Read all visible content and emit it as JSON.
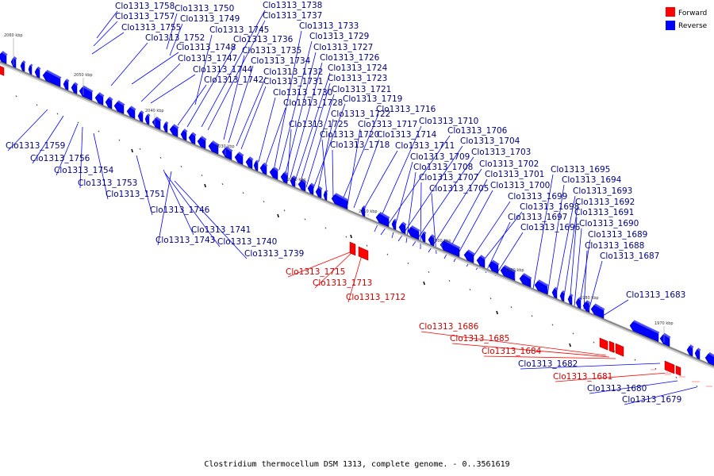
{
  "caption": "Clostridium thermocellum DSM 1313, complete genome. - 0..3561619",
  "legend": [
    {
      "label": "Forward",
      "color": "#ff0000"
    },
    {
      "label": "Reverse",
      "color": "#0000ff"
    }
  ],
  "colors": {
    "forward": "#ff0000",
    "reverse": "#0000ff",
    "backbone": "#888888"
  },
  "ticks": [
    "2060 kbp",
    "2050 kbp",
    "2040 kbp",
    "2030 kbp",
    "2020 kbp",
    "2010 kbp",
    "2000 kbp",
    "1990 kbp",
    "1980 kbp",
    "1970 kbp"
  ],
  "genes": [
    {
      "name": "Clo1313_1758",
      "strand": "reverse"
    },
    {
      "name": "Clo1313_1757",
      "strand": "reverse"
    },
    {
      "name": "Clo1313_1755",
      "strand": "reverse"
    },
    {
      "name": "Clo1313_1750",
      "strand": "reverse"
    },
    {
      "name": "Clo1313_1749",
      "strand": "reverse"
    },
    {
      "name": "Clo1313_1752",
      "strand": "reverse"
    },
    {
      "name": "Clo1313_1745",
      "strand": "reverse"
    },
    {
      "name": "Clo1313_1748",
      "strand": "reverse"
    },
    {
      "name": "Clo1313_1747",
      "strand": "reverse"
    },
    {
      "name": "Clo1313_1744",
      "strand": "reverse"
    },
    {
      "name": "Clo1313_1742",
      "strand": "reverse"
    },
    {
      "name": "Clo1313_1738",
      "strand": "reverse"
    },
    {
      "name": "Clo1313_1737",
      "strand": "reverse"
    },
    {
      "name": "Clo1313_1736",
      "strand": "reverse"
    },
    {
      "name": "Clo1313_1735",
      "strand": "reverse"
    },
    {
      "name": "Clo1313_1734",
      "strand": "reverse"
    },
    {
      "name": "Clo1313_1732",
      "strand": "reverse"
    },
    {
      "name": "Clo1313_1731",
      "strand": "reverse"
    },
    {
      "name": "Clo1313_1730",
      "strand": "reverse"
    },
    {
      "name": "Clo1313_1728",
      "strand": "reverse"
    },
    {
      "name": "Clo1313_1733",
      "strand": "reverse"
    },
    {
      "name": "Clo1313_1729",
      "strand": "reverse"
    },
    {
      "name": "Clo1313_1727",
      "strand": "reverse"
    },
    {
      "name": "Clo1313_1726",
      "strand": "reverse"
    },
    {
      "name": "Clo1313_1724",
      "strand": "reverse"
    },
    {
      "name": "Clo1313_1723",
      "strand": "reverse"
    },
    {
      "name": "Clo1313_1721",
      "strand": "reverse"
    },
    {
      "name": "Clo1313_1719",
      "strand": "reverse"
    },
    {
      "name": "Clo1313_1722",
      "strand": "reverse"
    },
    {
      "name": "Clo1313_1725",
      "strand": "reverse"
    },
    {
      "name": "Clo1313_1720",
      "strand": "reverse"
    },
    {
      "name": "Clo1313_1718",
      "strand": "reverse"
    },
    {
      "name": "Clo1313_1716",
      "strand": "reverse"
    },
    {
      "name": "Clo1313_1717",
      "strand": "reverse"
    },
    {
      "name": "Clo1313_1714",
      "strand": "reverse"
    },
    {
      "name": "Clo1313_1711",
      "strand": "reverse"
    },
    {
      "name": "Clo1313_1710",
      "strand": "reverse"
    },
    {
      "name": "Clo1313_1706",
      "strand": "reverse"
    },
    {
      "name": "Clo1313_1709",
      "strand": "reverse"
    },
    {
      "name": "Clo1313_1704",
      "strand": "reverse"
    },
    {
      "name": "Clo1313_1708",
      "strand": "reverse"
    },
    {
      "name": "Clo1313_1703",
      "strand": "reverse"
    },
    {
      "name": "Clo1313_1707",
      "strand": "reverse"
    },
    {
      "name": "Clo1313_1702",
      "strand": "reverse"
    },
    {
      "name": "Clo1313_1705",
      "strand": "reverse"
    },
    {
      "name": "Clo1313_1701",
      "strand": "reverse"
    },
    {
      "name": "Clo1313_1700",
      "strand": "reverse"
    },
    {
      "name": "Clo1313_1699",
      "strand": "reverse"
    },
    {
      "name": "Clo1313_1698",
      "strand": "reverse"
    },
    {
      "name": "Clo1313_1697",
      "strand": "reverse"
    },
    {
      "name": "Clo1313_1696",
      "strand": "reverse"
    },
    {
      "name": "Clo1313_1695",
      "strand": "reverse"
    },
    {
      "name": "Clo1313_1694",
      "strand": "reverse"
    },
    {
      "name": "Clo1313_1693",
      "strand": "reverse"
    },
    {
      "name": "Clo1313_1692",
      "strand": "reverse"
    },
    {
      "name": "Clo1313_1691",
      "strand": "reverse"
    },
    {
      "name": "Clo1313_1690",
      "strand": "reverse"
    },
    {
      "name": "Clo1313_1689",
      "strand": "reverse"
    },
    {
      "name": "Clo1313_1688",
      "strand": "reverse"
    },
    {
      "name": "Clo1313_1687",
      "strand": "reverse"
    },
    {
      "name": "Clo1313_1683",
      "strand": "reverse"
    },
    {
      "name": "Clo1313_1759",
      "strand": "reverse"
    },
    {
      "name": "Clo1313_1756",
      "strand": "reverse"
    },
    {
      "name": "Clo1313_1754",
      "strand": "reverse"
    },
    {
      "name": "Clo1313_1753",
      "strand": "reverse"
    },
    {
      "name": "Clo1313_1751",
      "strand": "reverse"
    },
    {
      "name": "Clo1313_1746",
      "strand": "reverse"
    },
    {
      "name": "Clo1313_1741",
      "strand": "reverse"
    },
    {
      "name": "Clo1313_1743",
      "strand": "reverse"
    },
    {
      "name": "Clo1313_1740",
      "strand": "reverse"
    },
    {
      "name": "Clo1313_1739",
      "strand": "reverse"
    },
    {
      "name": "Clo1313_1715",
      "strand": "forward"
    },
    {
      "name": "Clo1313_1713",
      "strand": "forward"
    },
    {
      "name": "Clo1313_1712",
      "strand": "forward"
    },
    {
      "name": "Clo1313_1686",
      "strand": "forward"
    },
    {
      "name": "Clo1313_1685",
      "strand": "forward"
    },
    {
      "name": "Clo1313_1684",
      "strand": "forward"
    },
    {
      "name": "Clo1313_1682",
      "strand": "reverse"
    },
    {
      "name": "Clo1313_1681",
      "strand": "forward"
    },
    {
      "name": "Clo1313_1680",
      "strand": "reverse"
    },
    {
      "name": "Clo1313_1679",
      "strand": "reverse"
    }
  ]
}
